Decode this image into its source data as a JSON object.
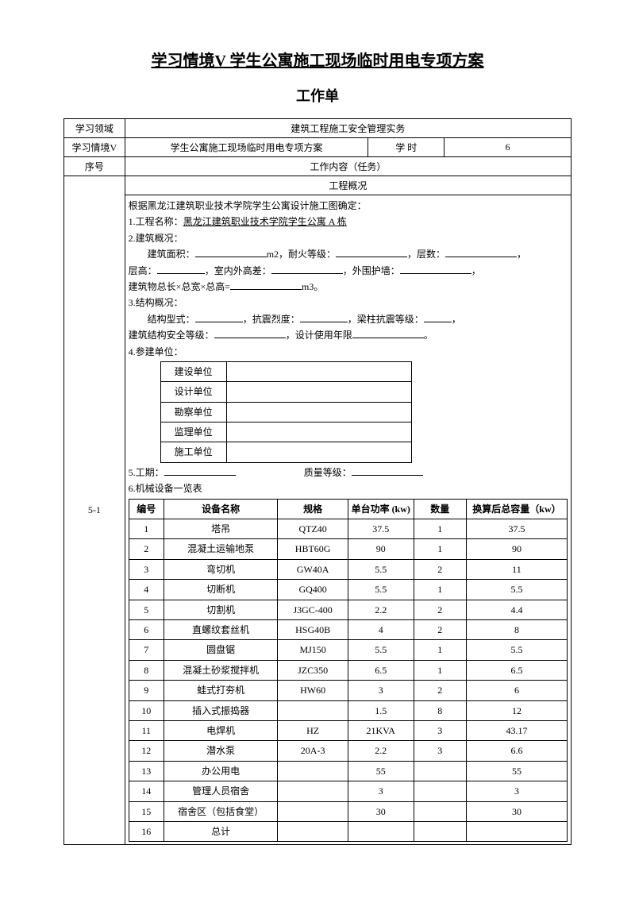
{
  "title": "学习情境V 学生公寓施工现场临时用电专项方案",
  "subtitle": "工作单",
  "header": {
    "field_label": "学习领域",
    "field_value": "建筑工程施工安全管理实务",
    "context_label": "学习情境V",
    "context_value": "学生公寓施工现场临时用电专项方案",
    "hours_label": "学    时",
    "hours_value": "6",
    "seq_label": "序号",
    "task_label": "工作内容（任务）"
  },
  "overview_heading": "工程概况",
  "row_label": "5-1",
  "body": {
    "line1": "根据黑龙江建筑职业技术学院学生公寓设计施工图确定：",
    "line2_prefix": "1.工程名称：",
    "line2_name": "黑龙江建筑职业技术学院学生公寓 A 栋",
    "line3": "2.建筑概况：",
    "l3a_pre": "建筑面积：",
    "l3a_mid1": "m2，耐火等级：",
    "l3a_mid2": "，层数：",
    "l3a_end": "，",
    "l3b_pre": "层高：",
    "l3b_mid1": "，室内外高差：",
    "l3b_mid2": "，外围护墙：",
    "l3b_end": "，",
    "l3c_pre": "建筑物总长×总宽×总高=",
    "l3c_end": "m3。",
    "line4": "3.结构概况：",
    "l4a_pre": "结构型式：",
    "l4a_mid1": "，抗震烈度：",
    "l4a_mid2": "，梁柱抗震等级：",
    "l4a_end": "，",
    "l4b_pre": "建筑结构安全等级：",
    "l4b_mid": "，设计使用年限",
    "l4b_end": "。",
    "line5": "4.参建单位：",
    "line6_pre": "5.工期：",
    "line6_mid": "质量等级：",
    "line7": "6.机械设备一览表"
  },
  "units": [
    "建设单位",
    "设计单位",
    "勘察单位",
    "监理单位",
    "施工单位"
  ],
  "equip_headers": {
    "no": "编号",
    "name": "设备名称",
    "spec": "规格",
    "power": "单台功率 (kw)",
    "qty": "数量",
    "total": "换算后总容量（kw）"
  },
  "equipment": [
    {
      "no": "1",
      "name": "塔吊",
      "spec": "QTZ40",
      "power": "37.5",
      "qty": "1",
      "total": "37.5"
    },
    {
      "no": "2",
      "name": "混凝土运输地泵",
      "spec": "HBT60G",
      "power": "90",
      "qty": "1",
      "total": "90"
    },
    {
      "no": "3",
      "name": "弯切机",
      "spec": "GW40A",
      "power": "5.5",
      "qty": "2",
      "total": "11"
    },
    {
      "no": "4",
      "name": "切断机",
      "spec": "GQ400",
      "power": "5.5",
      "qty": "1",
      "total": "5.5"
    },
    {
      "no": "5",
      "name": "切割机",
      "spec": "J3GC-400",
      "power": "2.2",
      "qty": "2",
      "total": "4.4"
    },
    {
      "no": "6",
      "name": "直螺纹套丝机",
      "spec": "HSG40B",
      "power": "4",
      "qty": "2",
      "total": "8"
    },
    {
      "no": "7",
      "name": "圆盘锯",
      "spec": "MJ150",
      "power": "5.5",
      "qty": "1",
      "total": "5.5"
    },
    {
      "no": "8",
      "name": "混凝土砂浆搅拌机",
      "spec": "JZC350",
      "power": "6.5",
      "qty": "1",
      "total": "6.5"
    },
    {
      "no": "9",
      "name": "蛙式打夯机",
      "spec": "HW60",
      "power": "3",
      "qty": "2",
      "total": "6"
    },
    {
      "no": "10",
      "name": "插入式振捣器",
      "spec": "",
      "power": "1.5",
      "qty": "8",
      "total": "12"
    },
    {
      "no": "11",
      "name": "电焊机",
      "spec": "HZ",
      "power": "21KVA",
      "qty": "3",
      "total": "43.17"
    },
    {
      "no": "12",
      "name": "潜水泵",
      "spec": "20A-3",
      "power": "2.2",
      "qty": "3",
      "total": "6.6"
    },
    {
      "no": "13",
      "name": "办公用电",
      "spec": "",
      "power": "55",
      "qty": "",
      "total": "55"
    },
    {
      "no": "14",
      "name": "管理人员宿舍",
      "spec": "",
      "power": "3",
      "qty": "",
      "total": "3"
    },
    {
      "no": "15",
      "name": "宿舍区（包括食堂）",
      "spec": "",
      "power": "30",
      "qty": "",
      "total": "30"
    },
    {
      "no": "16",
      "name": "总计",
      "spec": "",
      "power": "",
      "qty": "",
      "total": ""
    }
  ]
}
